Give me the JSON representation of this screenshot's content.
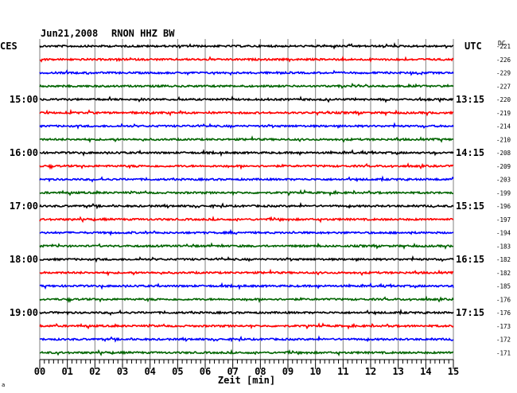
{
  "chart_data": {
    "type": "line",
    "header": {
      "date": "Jun21,2008",
      "station": "RNON HHZ BW",
      "left_timezone": "CES",
      "right_timezone": "UTC",
      "dc_label": "DC"
    },
    "xlabel": "Zeit [min]",
    "xlim": [
      0,
      15
    ],
    "x_ticks": [
      "00",
      "01",
      "02",
      "03",
      "04",
      "05",
      "06",
      "07",
      "08",
      "09",
      "10",
      "11",
      "12",
      "13",
      "14",
      "15"
    ],
    "trace_colors": [
      "#000000",
      "#ff0000",
      "#0000ff",
      "#006400"
    ],
    "left_hour_labels": [
      {
        "trace_index": 4,
        "label": "15:00"
      },
      {
        "trace_index": 8,
        "label": "16:00"
      },
      {
        "trace_index": 12,
        "label": "17:00"
      },
      {
        "trace_index": 16,
        "label": "18:00"
      },
      {
        "trace_index": 20,
        "label": "19:00"
      }
    ],
    "right_time_labels": [
      {
        "trace_index": 4,
        "label": "13:15"
      },
      {
        "trace_index": 8,
        "label": "14:15"
      },
      {
        "trace_index": 12,
        "label": "15:15"
      },
      {
        "trace_index": 16,
        "label": "16:15"
      },
      {
        "trace_index": 20,
        "label": "17:15"
      }
    ],
    "dc_offsets": [
      "-221",
      "-226",
      "-229",
      "-227",
      "-220",
      "-219",
      "-214",
      "-210",
      "-208",
      "-209",
      "-203",
      "-199",
      "-196",
      "-197",
      "-194",
      "-183",
      "-182",
      "-182",
      "-185",
      "-176",
      "-176",
      "-173",
      "-172",
      "-171"
    ],
    "trace_count": 24,
    "corner_mark": "a"
  }
}
